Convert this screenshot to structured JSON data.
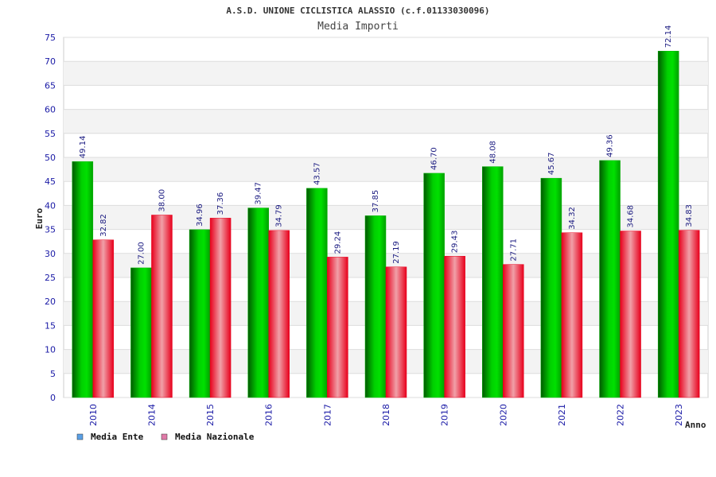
{
  "chart_data": {
    "type": "bar",
    "title": "A.S.D. UNIONE CICLISTICA ALASSIO (c.f.01133030096)",
    "subtitle": "Media Importi",
    "xlabel": "Anno",
    "ylabel": "Euro",
    "categories": [
      "2010",
      "2014",
      "2015",
      "2016",
      "2017",
      "2018",
      "2019",
      "2020",
      "2021",
      "2022",
      "2023"
    ],
    "series": [
      {
        "name": "Media Ente",
        "color": "#00b400",
        "values": [
          49.14,
          27.0,
          34.96,
          39.47,
          43.57,
          37.85,
          46.7,
          48.08,
          45.67,
          49.36,
          72.14
        ]
      },
      {
        "name": "Media Nazionale",
        "color": "#e8001c",
        "values": [
          32.82,
          38.0,
          37.36,
          34.79,
          29.24,
          27.19,
          29.43,
          27.71,
          34.32,
          34.68,
          34.83
        ]
      }
    ],
    "data_labels": [
      [
        "49.14",
        "27.00",
        "34.96",
        "39.47",
        "43.57",
        "37.85",
        "46.70",
        "48.08",
        "45.67",
        "49.36",
        "72.14"
      ],
      [
        "32.82",
        "38.00",
        "37.36",
        "34.79",
        "29.24",
        "27.19",
        "29.43",
        "27.71",
        "34.32",
        "34.68",
        "34.83"
      ]
    ],
    "ylim": [
      0,
      75
    ],
    "yticks": [
      "0",
      "5",
      "10",
      "15",
      "20",
      "25",
      "30",
      "35",
      "40",
      "45",
      "50",
      "55",
      "60",
      "65",
      "70",
      "75"
    ],
    "grid": true,
    "legend": {
      "placement": "bottom-left",
      "items": [
        {
          "label": "Media Ente",
          "swatch": "#5aa0e6"
        },
        {
          "label": "Media Nazionale",
          "swatch": "#e07aa8"
        }
      ]
    }
  }
}
